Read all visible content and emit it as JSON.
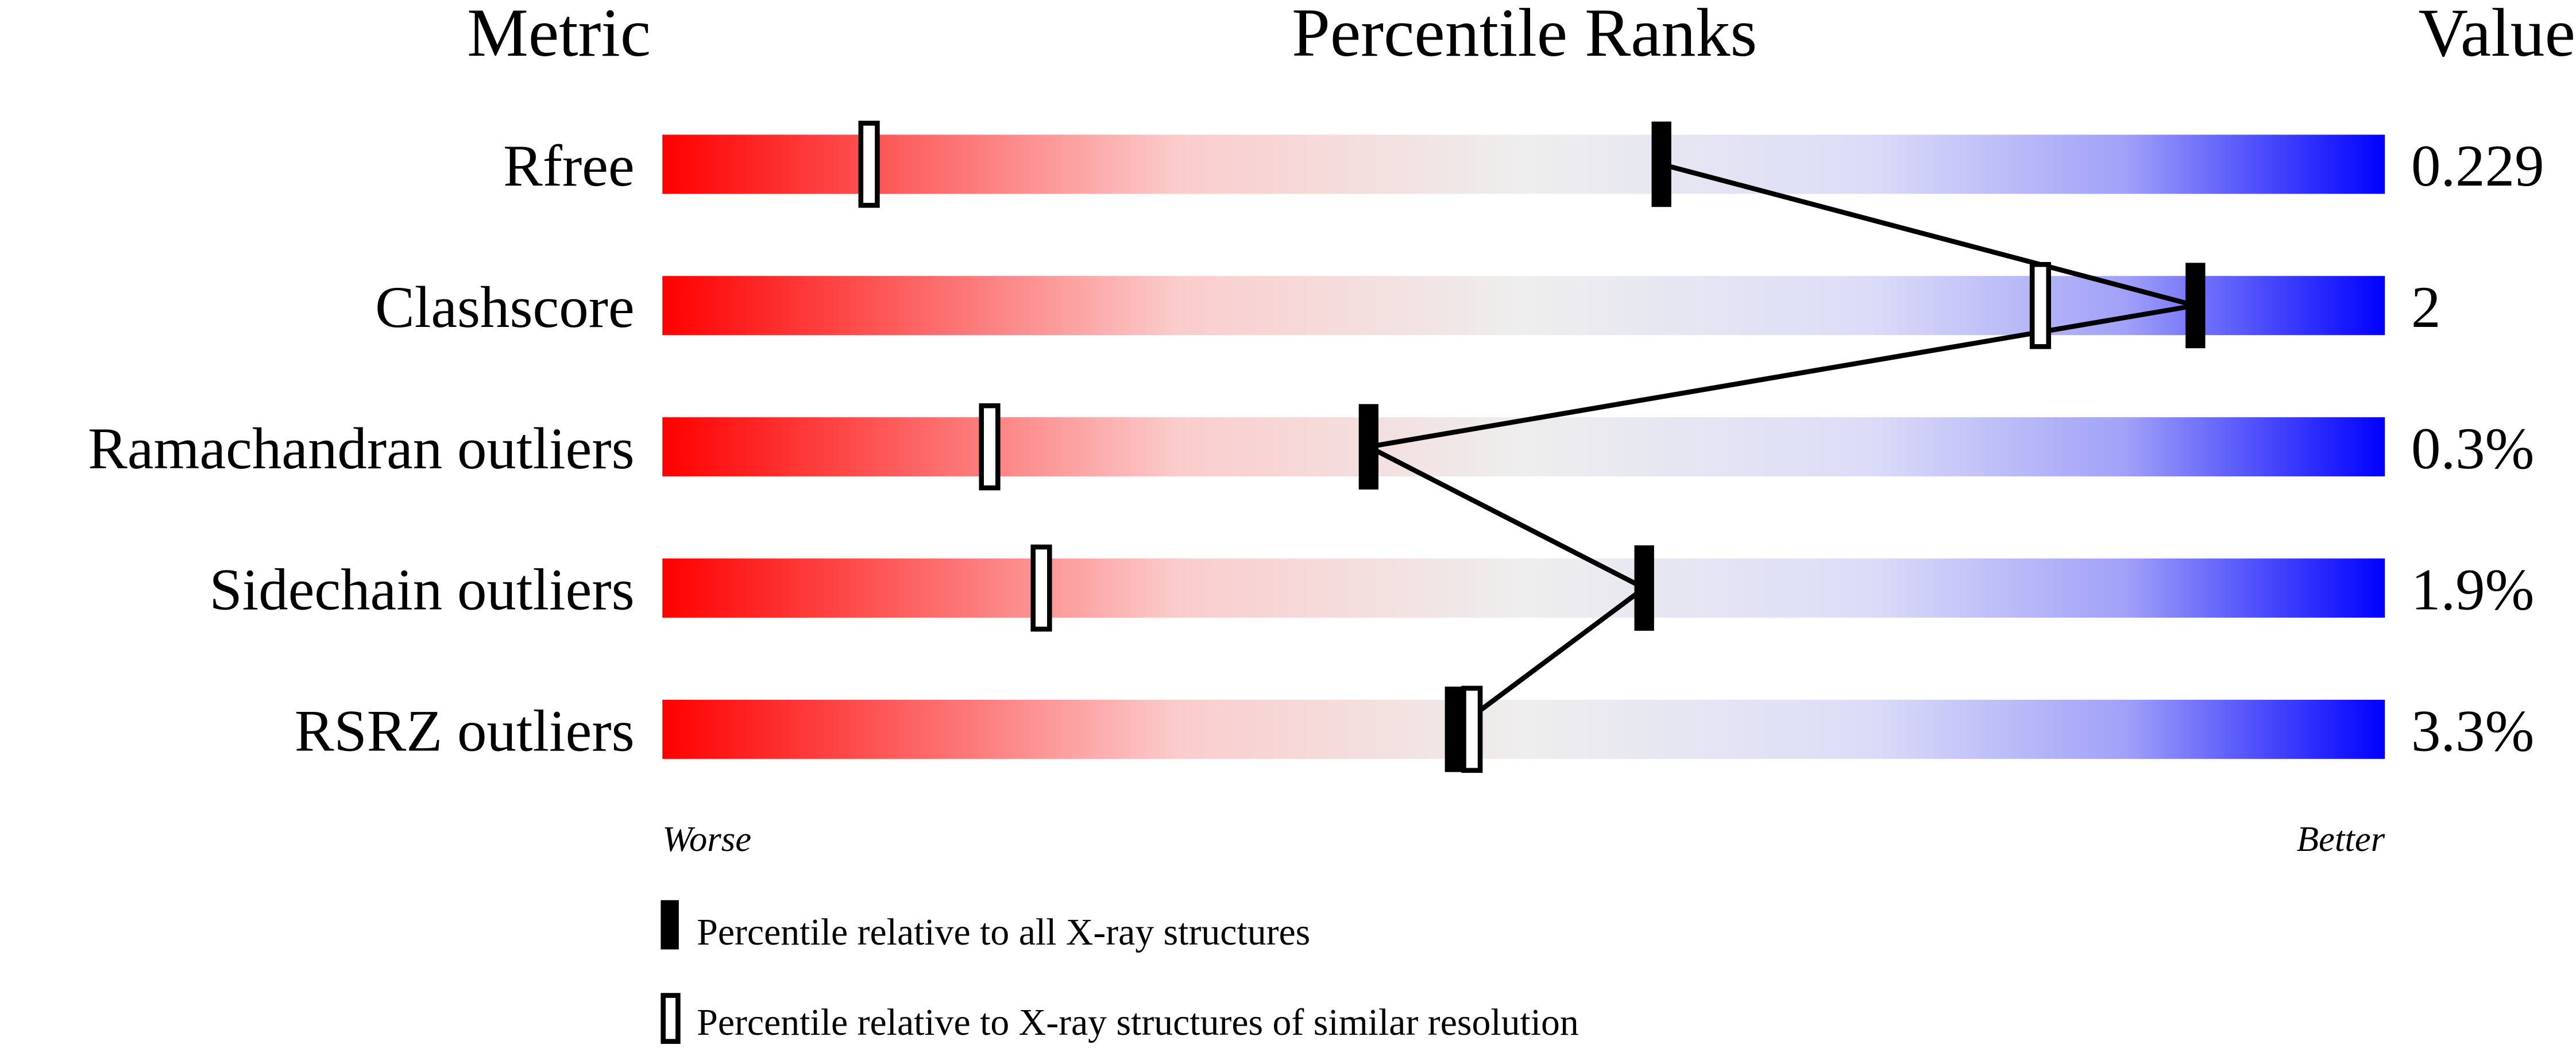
{
  "header": {
    "metric": "Metric",
    "percentile": "Percentile Ranks",
    "value": "Value"
  },
  "scale": {
    "worse": "Worse",
    "better": "Better"
  },
  "legend": {
    "all": "Percentile relative to all X-ray structures",
    "similar": "Percentile relative to X-ray structures of similar resolution"
  },
  "colors": {
    "worse": "#ff0000",
    "middle": "#eeeeee",
    "better": "#0000ff",
    "marker": "#000000"
  },
  "chart_data": {
    "type": "percentile-slider",
    "xlim": [
      0,
      100
    ],
    "categories": [
      "Rfree",
      "Clashscore",
      "Ramachandran outliers",
      "Sidechain outliers",
      "RSRZ outliers"
    ],
    "values": [
      "0.229",
      "2",
      "0.3%",
      "1.9%",
      "3.3%"
    ],
    "series": [
      {
        "name": "Percentile relative to all X-ray structures",
        "values": [
          58,
          89,
          41,
          57,
          46
        ]
      },
      {
        "name": "Percentile relative to X-ray structures of similar resolution",
        "values": [
          12,
          80,
          19,
          22,
          47
        ]
      }
    ]
  }
}
